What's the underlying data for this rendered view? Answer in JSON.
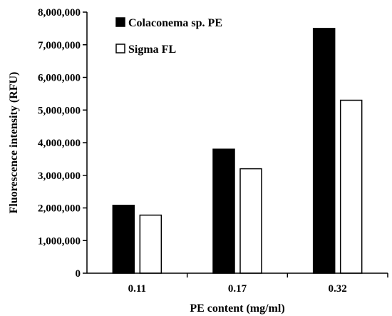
{
  "chart_data": {
    "type": "bar",
    "categories": [
      "0.11",
      "0.17",
      "0.32"
    ],
    "series": [
      {
        "name": "Colaconema sp. PE",
        "values": [
          2080000,
          3800000,
          7500000
        ],
        "color": "#000000",
        "fill": "solid"
      },
      {
        "name": "Sigma FL",
        "values": [
          1780000,
          3200000,
          5300000
        ],
        "color": "#000000",
        "fill": "hollow"
      }
    ],
    "xlabel": "PE content (mg/ml)",
    "ylabel": "Fluorescence intensity (RFU)",
    "ylim": [
      0,
      8000000
    ],
    "yticks": [
      "0",
      "1,000,000",
      "2,000,000",
      "3,000,000",
      "4,000,000",
      "5,000,000",
      "6,000,000",
      "7,000,000",
      "8,000,000"
    ],
    "grid": false,
    "legend_position": "top-left"
  }
}
